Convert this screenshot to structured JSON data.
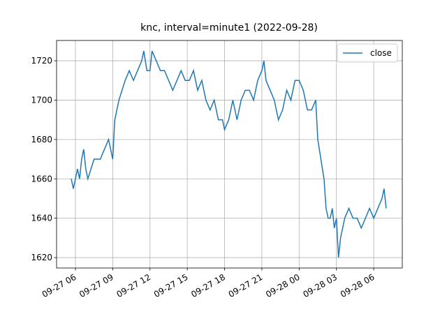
{
  "chart_data": {
    "type": "line",
    "title": "knc, interval=minute1 (2022-09-28)",
    "x": [
      "09-27 05:40",
      "09-27 05:50",
      "09-27 06:00",
      "09-27 06:10",
      "09-27 06:20",
      "09-27 06:30",
      "09-27 06:40",
      "09-27 06:50",
      "09-27 07:00",
      "09-27 07:15",
      "09-27 07:30",
      "09-27 08:00",
      "09-27 08:20",
      "09-27 08:40",
      "09-27 08:50",
      "09-27 09:00",
      "09-27 09:10",
      "09-27 09:20",
      "09-27 09:30",
      "09-27 09:45",
      "09-27 10:00",
      "09-27 10:20",
      "09-27 10:40",
      "09-27 11:00",
      "09-27 11:20",
      "09-27 11:30",
      "09-27 11:45",
      "09-27 12:00",
      "09-27 12:10",
      "09-27 12:30",
      "09-27 12:50",
      "09-27 13:10",
      "09-27 13:30",
      "09-27 13:50",
      "09-27 14:10",
      "09-27 14:30",
      "09-27 14:50",
      "09-27 15:10",
      "09-27 15:30",
      "09-27 15:50",
      "09-27 16:10",
      "09-27 16:30",
      "09-27 16:50",
      "09-27 17:10",
      "09-27 17:30",
      "09-27 17:50",
      "09-27 18:00",
      "09-27 18:20",
      "09-27 18:40",
      "09-27 19:00",
      "09-27 19:20",
      "09-27 19:40",
      "09-27 20:00",
      "09-27 20:20",
      "09-27 20:40",
      "09-27 21:00",
      "09-27 21:10",
      "09-27 21:20",
      "09-27 21:40",
      "09-27 22:00",
      "09-27 22:20",
      "09-27 22:40",
      "09-27 23:00",
      "09-27 23:20",
      "09-27 23:40",
      "09-28 00:00",
      "09-28 00:20",
      "09-28 00:40",
      "09-28 01:00",
      "09-28 01:20",
      "09-28 01:30",
      "09-28 01:45",
      "09-28 02:00",
      "09-28 02:10",
      "09-28 02:20",
      "09-28 02:30",
      "09-28 02:40",
      "09-28 02:50",
      "09-28 03:00",
      "09-28 03:10",
      "09-28 03:20",
      "09-28 03:40",
      "09-28 04:00",
      "09-28 04:20",
      "09-28 04:40",
      "09-28 05:00",
      "09-28 05:20",
      "09-28 05:40",
      "09-28 06:00",
      "09-28 06:20",
      "09-28 06:40",
      "09-28 06:50",
      "09-28 07:00"
    ],
    "series": [
      {
        "name": "close",
        "color": "#1f77b4",
        "values": [
          1660,
          1655,
          1660,
          1665,
          1660,
          1670,
          1675,
          1665,
          1660,
          1665,
          1670,
          1670,
          1675,
          1680,
          1675,
          1670,
          1690,
          1695,
          1700,
          1705,
          1710,
          1715,
          1710,
          1715,
          1720,
          1725,
          1715,
          1715,
          1725,
          1720,
          1715,
          1715,
          1710,
          1705,
          1710,
          1715,
          1710,
          1710,
          1715,
          1705,
          1710,
          1700,
          1695,
          1700,
          1690,
          1690,
          1685,
          1690,
          1700,
          1690,
          1700,
          1705,
          1705,
          1700,
          1710,
          1715,
          1720,
          1710,
          1705,
          1700,
          1690,
          1695,
          1705,
          1700,
          1710,
          1710,
          1705,
          1695,
          1695,
          1700,
          1680,
          1670,
          1660,
          1645,
          1640,
          1640,
          1645,
          1635,
          1640,
          1620,
          1630,
          1640,
          1645,
          1640,
          1640,
          1635,
          1640,
          1645,
          1640,
          1645,
          1650,
          1655,
          1645
        ]
      }
    ],
    "xlim": [
      "09-27 04:29",
      "09-28 08:18"
    ],
    "xticks": [
      {
        "value": "09-27 06:00",
        "label": "09-27 06"
      },
      {
        "value": "09-27 09:00",
        "label": "09-27 09"
      },
      {
        "value": "09-27 12:00",
        "label": "09-27 12"
      },
      {
        "value": "09-27 15:00",
        "label": "09-27 15"
      },
      {
        "value": "09-27 18:00",
        "label": "09-27 18"
      },
      {
        "value": "09-27 21:00",
        "label": "09-27 21"
      },
      {
        "value": "09-28 00:00",
        "label": "09-28 00"
      },
      {
        "value": "09-28 03:00",
        "label": "09-28 03"
      },
      {
        "value": "09-28 06:00",
        "label": "09-28 06"
      }
    ],
    "ylim": [
      1614.7,
      1730.3
    ],
    "yticks": [
      1620,
      1640,
      1660,
      1680,
      1700,
      1720
    ],
    "grid": true,
    "legend": "upper right"
  }
}
